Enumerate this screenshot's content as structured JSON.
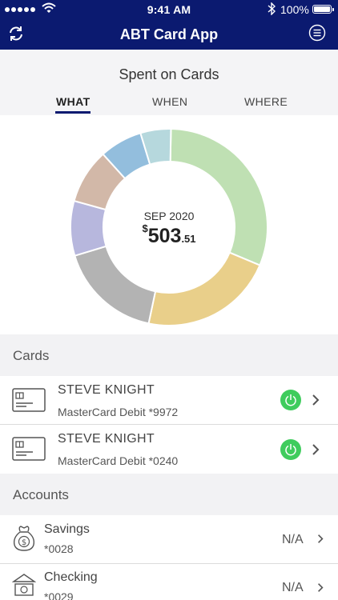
{
  "status_bar": {
    "time": "9:41 AM",
    "battery": "100%",
    "battery_level": 1.0
  },
  "header": {
    "title": "ABT Card App",
    "left_icon": "refresh-icon",
    "right_icon": "menu-icon"
  },
  "summary": {
    "title": "Spent on Cards",
    "tabs": [
      {
        "label": "WHAT",
        "active": true
      },
      {
        "label": "WHEN",
        "active": false
      },
      {
        "label": "WHERE",
        "active": false
      }
    ],
    "period": "SEP 2020",
    "currency": "$",
    "amount_whole": "503",
    "amount_cents": ".51"
  },
  "chart_data": {
    "type": "pie",
    "center_label": "SEP 2020",
    "center_value": "$503.51",
    "segments": [
      {
        "share": 0.31,
        "color": "#bfe0b3"
      },
      {
        "share": 0.22,
        "color": "#e9cf8a"
      },
      {
        "share": 0.17,
        "color": "#b3b3b3"
      },
      {
        "share": 0.09,
        "color": "#b7b7dd"
      },
      {
        "share": 0.09,
        "color": "#d2b8a8"
      },
      {
        "share": 0.07,
        "color": "#93bedd"
      },
      {
        "share": 0.05,
        "color": "#b6d8dd"
      }
    ]
  },
  "cards_section": {
    "heading": "Cards",
    "items": [
      {
        "name": "STEVE KNIGHT",
        "detail": "MasterCard Debit *9972",
        "icon": "credit-card-icon",
        "status": "on"
      },
      {
        "name": "STEVE KNIGHT",
        "detail": "MasterCard Debit *0240",
        "icon": "credit-card-icon",
        "status": "on"
      }
    ]
  },
  "accounts_section": {
    "heading": "Accounts",
    "items": [
      {
        "name": "Savings",
        "number": "*0028",
        "balance": "N/A",
        "icon": "money-bag-icon"
      },
      {
        "name": "Checking",
        "number": "*0029",
        "balance": "N/A",
        "icon": "bank-icon"
      }
    ]
  },
  "colors": {
    "header_bg": "#0b1a70",
    "toggle_on": "#3fcc5d",
    "tab_underline": "#0b1a70"
  }
}
